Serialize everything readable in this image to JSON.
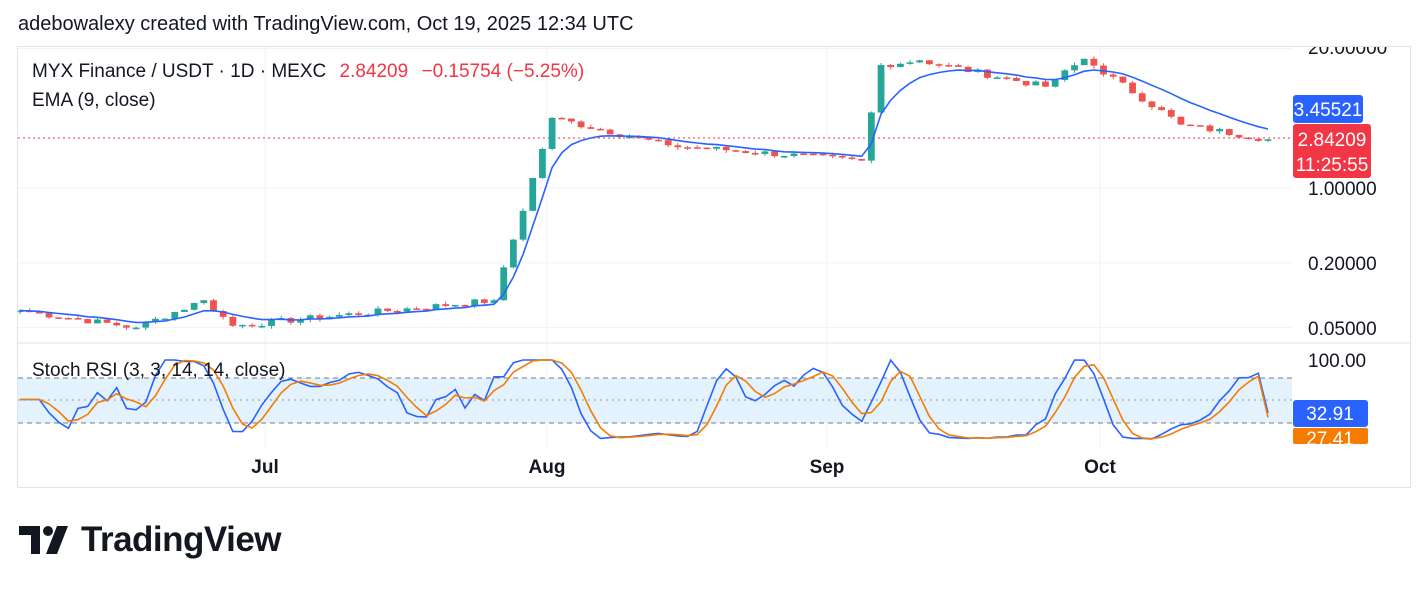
{
  "attribution": "adebowalexy created with TradingView.com, Oct 19, 2025 12:34 UTC",
  "legend": {
    "symbol": "MYX Finance / USDT · 1D · MEXC",
    "price": "2.84209",
    "change": "−0.15754 (−5.25%)",
    "ema_label": "EMA (9, close)",
    "stoch_label": "Stoch RSI (3, 3, 14, 14, close)"
  },
  "badges": {
    "ema_value": "3.45521",
    "last_price": "2.84209",
    "countdown": "11:25:55",
    "k_value": "32.91",
    "d_value": "27.41"
  },
  "logo": {
    "text": "TradingView",
    "icon": "tradingview-logo-icon"
  },
  "colors": {
    "up": "#26a69a",
    "down": "#ef5350",
    "ema": "#2962ff",
    "stoch_k": "#2962ff",
    "stoch_d": "#f57c00",
    "band": "#e3f2fd",
    "price_line": "#f23645"
  },
  "chart_data": [
    {
      "type": "candlestick",
      "title": "MYX Finance / USDT · 1D · MEXC",
      "y_scale": "log",
      "y_ticks": [
        "20.00000",
        "1.00000",
        "0.20000",
        "0.05000"
      ],
      "x_ticks": [
        "Jul",
        "Aug",
        "Sep",
        "Oct"
      ],
      "last_price": 2.84209,
      "ema_last": 3.45521,
      "ohlc_sample": [
        {
          "date": "2025-06-12",
          "close": 0.072
        },
        {
          "date": "2025-06-24",
          "close": 0.05
        },
        {
          "date": "2025-07-01",
          "close": 0.09
        },
        {
          "date": "2025-07-04",
          "close": 0.052
        },
        {
          "date": "2025-07-31",
          "close": 0.09
        },
        {
          "date": "2025-08-06",
          "close": 4.5
        },
        {
          "date": "2025-08-18",
          "close": 2.5
        },
        {
          "date": "2025-09-07",
          "close": 1.8
        },
        {
          "date": "2025-09-09",
          "close": 14.0
        },
        {
          "date": "2025-09-13",
          "close": 15.5
        },
        {
          "date": "2025-09-26",
          "close": 8.8
        },
        {
          "date": "2025-09-30",
          "close": 16.0
        },
        {
          "date": "2025-10-10",
          "close": 3.9
        },
        {
          "date": "2025-10-19",
          "close": 2.84209
        }
      ]
    },
    {
      "type": "line",
      "title": "Stoch RSI (3, 3, 14, 14, close)",
      "ylim": [
        0,
        100
      ],
      "y_ticks": [
        "100.00"
      ],
      "bands": [
        80,
        20
      ],
      "series": [
        {
          "name": "K",
          "last": 32.91
        },
        {
          "name": "D",
          "last": 27.41
        }
      ]
    }
  ]
}
